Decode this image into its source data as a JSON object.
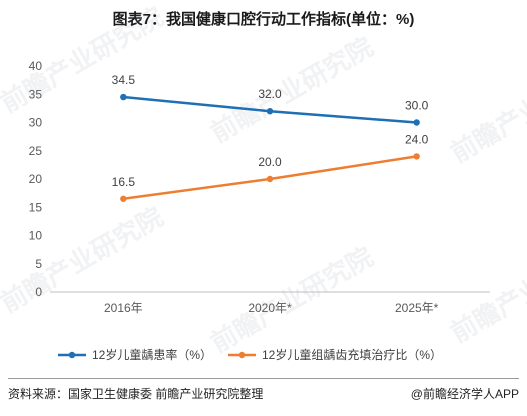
{
  "title": "图表7：我国健康口腔行动工作指标(单位：%)",
  "footer": {
    "source": "资料来源：国家卫生健康委 前瞻产业研究院整理",
    "brand": "@前瞻经济学人APP"
  },
  "watermark_text": "前瞻产业研究院",
  "chart_data": {
    "type": "line",
    "title": "图表7：我国健康口腔行动工作指标(单位：%)",
    "categories": [
      "2016年",
      "2020年*",
      "2025年*"
    ],
    "ylim": [
      0,
      40
    ],
    "yticks": [
      0,
      5,
      10,
      15,
      20,
      25,
      30,
      35,
      40
    ],
    "grid": false,
    "legend_position": "bottom",
    "series": [
      {
        "name": "12岁儿童龋患率（%）",
        "values": [
          34.5,
          32.0,
          30.0
        ],
        "labels": [
          "34.5",
          "32.0",
          "30.0"
        ],
        "color": "#1f6fb5"
      },
      {
        "name": "12岁儿童组龋齿充填治疗比（%）",
        "values": [
          16.5,
          20.0,
          24.0
        ],
        "labels": [
          "16.5",
          "20.0",
          "24.0"
        ],
        "color": "#ed7d31"
      }
    ]
  }
}
